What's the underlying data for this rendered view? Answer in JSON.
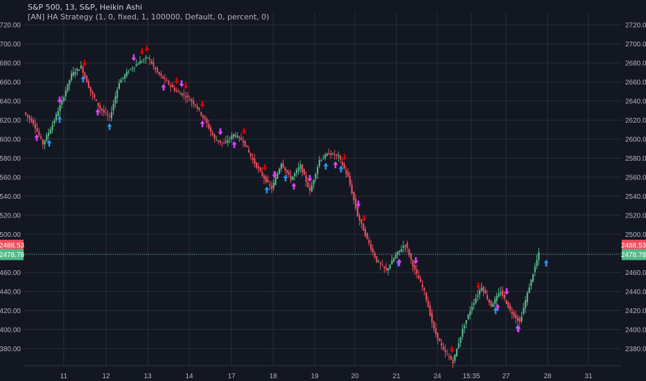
{
  "legend": {
    "title": "S&P 500, 13, S&P, Heikin Ashi",
    "indicator": "[AN] HA Strategy (1, 0, fixed, 1, 100000, Default, 0, percent, 0)"
  },
  "colors": {
    "background": "#131722",
    "grid": "#2a2e39",
    "up": "#53b987",
    "down": "#eb4d5c",
    "long_arrow": "#2196f3",
    "short_arrow": "#d50000",
    "exit_arrow": "#e040fb",
    "price_up_label": "#53b987",
    "price_down_label": "#eb4d5c"
  },
  "price_labels": {
    "red_value": "2488.53",
    "green_value": "2478.78"
  },
  "chart_data": {
    "type": "candlestick",
    "style": "Heikin Ashi",
    "symbol": "S&P 500",
    "interval": "13",
    "ylim": [
      2362,
      2733
    ],
    "y_ticks": [
      "2720.00",
      "2700.00",
      "2680.00",
      "2660.00",
      "2640.00",
      "2620.00",
      "2600.00",
      "2580.00",
      "2560.00",
      "2540.00",
      "2520.00",
      "2500.00",
      "2480.00",
      "2460.00",
      "2440.00",
      "2420.00",
      "2400.00",
      "2380.00"
    ],
    "x_ticks": [
      "11",
      "12",
      "13",
      "14",
      "17",
      "18",
      "19",
      "20",
      "21",
      "24",
      "15:35",
      "27",
      "28",
      "31"
    ],
    "grid": true,
    "price_path": [
      [
        "start",
        2628
      ],
      [
        "d",
        2617
      ],
      [
        "d",
        2595
      ],
      [
        "u",
        2615
      ],
      [
        "u",
        2640
      ],
      [
        "u",
        2668
      ],
      [
        "u",
        2676
      ],
      [
        "d",
        2650
      ],
      [
        "d",
        2632
      ],
      [
        "d",
        2622
      ],
      [
        "u",
        2660
      ],
      [
        "u",
        2672
      ],
      [
        "u",
        2680
      ],
      [
        "u",
        2686
      ],
      [
        "d",
        2670
      ],
      [
        "d",
        2660
      ],
      [
        "d",
        2650
      ],
      [
        "d",
        2645
      ],
      [
        "d",
        2636
      ],
      [
        "d",
        2620
      ],
      [
        "d",
        2600
      ],
      [
        "d",
        2595
      ],
      [
        "u",
        2605
      ],
      [
        "u",
        2598
      ],
      [
        "d",
        2578
      ],
      [
        "d",
        2562
      ],
      [
        "d",
        2548
      ],
      [
        "u",
        2575
      ],
      [
        "d",
        2558
      ],
      [
        "u",
        2572
      ],
      [
        "d",
        2545
      ],
      [
        "u",
        2578
      ],
      [
        "u",
        2585
      ],
      [
        "u",
        2582
      ],
      [
        "d",
        2560
      ],
      [
        "d",
        2520
      ],
      [
        "d",
        2495
      ],
      [
        "d",
        2472
      ],
      [
        "d",
        2462
      ],
      [
        "u",
        2478
      ],
      [
        "u",
        2490
      ],
      [
        "d",
        2462
      ],
      [
        "d",
        2440
      ],
      [
        "d",
        2400
      ],
      [
        "d",
        2378
      ],
      [
        "d",
        2366
      ],
      [
        "u",
        2400
      ],
      [
        "u",
        2425
      ],
      [
        "u",
        2445
      ],
      [
        "d",
        2425
      ],
      [
        "u",
        2440
      ],
      [
        "d",
        2420
      ],
      [
        "d",
        2408
      ],
      [
        "u",
        2445
      ],
      [
        "u",
        2480
      ]
    ],
    "signals": {
      "long_entry": [
        "Mar 11",
        "Mar 11",
        "Mar 12",
        "Mar 12",
        "Mar 18",
        "Mar 19",
        "Mar 19",
        "Mar 21",
        "Mar 26",
        "Mar 27",
        "Mar 27",
        "Mar 28"
      ],
      "short_entry": [
        "Mar 12",
        "Mar 13",
        "Mar 13",
        "Mar 14",
        "Mar 14",
        "Mar 15",
        "Mar 18",
        "Mar 19",
        "Mar 20",
        "Mar 22",
        "Mar 25",
        "Mar 27"
      ],
      "exit": [
        "Mar 11",
        "Mar 11",
        "Mar 12",
        "Mar 13",
        "Mar 13",
        "Mar 14",
        "Mar 15",
        "Mar 15",
        "Mar 18",
        "Mar 18",
        "Mar 19",
        "Mar 20",
        "Mar 20",
        "Mar 21",
        "Mar 21",
        "Mar 22",
        "Mar 26",
        "Mar 27",
        "Mar 27"
      ]
    }
  }
}
